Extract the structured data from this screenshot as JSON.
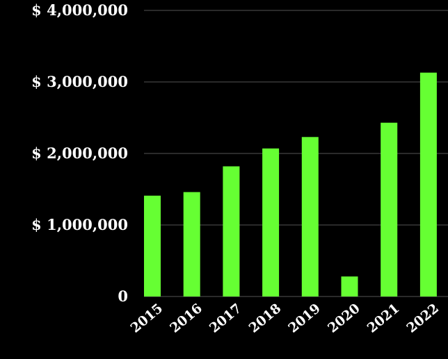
{
  "chart_data": {
    "type": "bar",
    "categories": [
      "2015",
      "2016",
      "2017",
      "2018",
      "2019",
      "2020",
      "2021",
      "2022"
    ],
    "values": [
      1410000,
      1460000,
      1820000,
      2070000,
      2230000,
      280000,
      2430000,
      3130000
    ],
    "y_ticks": [
      {
        "value": 0,
        "label": "0"
      },
      {
        "value": 1000000,
        "label": "$ 1,000,000"
      },
      {
        "value": 2000000,
        "label": "$ 2,000,000"
      },
      {
        "value": 3000000,
        "label": "$ 3,000,000"
      },
      {
        "value": 4000000,
        "label": "$ 4,000,000"
      }
    ],
    "ylim": [
      0,
      4000000
    ],
    "grid": true,
    "colors": {
      "bar": "#66ff33",
      "grid": "#555555",
      "background": "#000000",
      "text": "#ffffff"
    }
  }
}
